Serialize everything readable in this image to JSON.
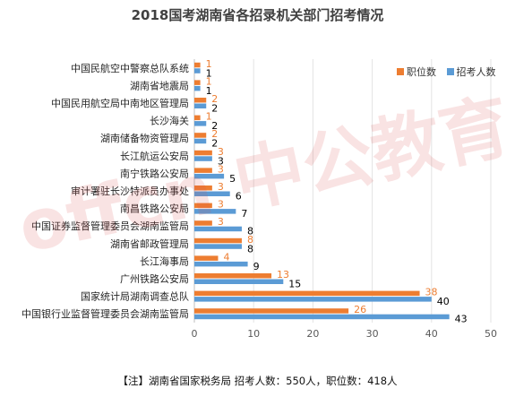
{
  "title": "2018国考湖南省各招录机关部门招考情况",
  "note": "【注】湖南省国家税务局 招考人数：550人，职位数：418人",
  "watermark": "offcn 中公教育",
  "colors": {
    "positions": "#ED7D31",
    "applicants": "#5B9BD5"
  },
  "chart_data": {
    "type": "bar",
    "orientation": "horizontal",
    "title": "2018国考湖南省各招录机关部门招考情况",
    "categories": [
      "中国民航空中警察总队系统",
      "湖南省地震局",
      "中国民用航空局中南地区管理局",
      "长沙海关",
      "湖南储备物资管理局",
      "长江航运公安局",
      "南宁铁路公安局",
      "审计署驻长沙特派员办事处",
      "南昌铁路公安局",
      "中国证券监督管理委员会湖南监管局",
      "湖南省邮政管理局",
      "长江海事局",
      "广州铁路公安局",
      "国家统计局湖南调查总队",
      "中国银行业监督管理委员会湖南监管局"
    ],
    "series": [
      {
        "name": "职位数",
        "color": "#ED7D31",
        "values": [
          1,
          1,
          2,
          1,
          2,
          3,
          3,
          3,
          3,
          3,
          8,
          4,
          13,
          38,
          26
        ]
      },
      {
        "name": "招考人数",
        "color": "#5B9BD5",
        "values": [
          1,
          1,
          2,
          2,
          2,
          3,
          5,
          6,
          7,
          8,
          8,
          9,
          15,
          40,
          43
        ]
      }
    ],
    "xlim": [
      0,
      50
    ],
    "xticks": [
      0,
      10,
      20,
      30,
      40,
      50
    ],
    "legend_position": "top-right",
    "grid": true
  }
}
